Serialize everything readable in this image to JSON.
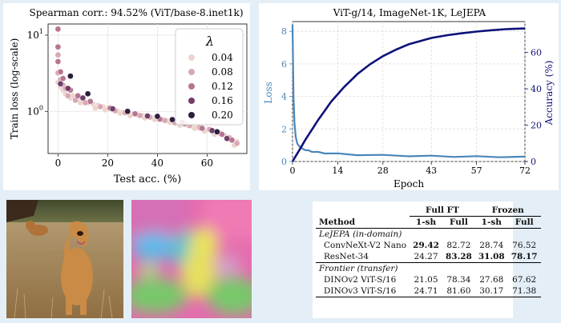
{
  "chart_data": [
    {
      "type": "scatter",
      "title": "Spearman corr.: 94.52% (ViT/base-8.inet1k)",
      "xlabel": "Test acc. (%)",
      "ylabel": "Train loss (log-scale)",
      "xlim": [
        -4,
        76
      ],
      "ylim": [
        0.28,
        14
      ],
      "y_scale": "log",
      "x_ticks": [
        0,
        20,
        40,
        60
      ],
      "y_ticks": [
        1,
        10
      ],
      "y_tick_labels": [
        "10^0",
        "10^1"
      ],
      "legend": {
        "title": "λ",
        "placement": "top-right"
      },
      "grid": true,
      "colors": {
        "0.04": "#ecd3cd",
        "0.08": "#d9a8b1",
        "0.12": "#b87592",
        "0.16": "#6f3f69",
        "0.20": "#2d1e3e"
      },
      "series": [
        {
          "name": "0.04",
          "points": [
            [
              0,
              2.4
            ],
            [
              1,
              2.1
            ],
            [
              2,
              1.9
            ],
            [
              3,
              1.7
            ],
            [
              5,
              1.5
            ],
            [
              6,
              1.6
            ],
            [
              8,
              1.45
            ],
            [
              10,
              1.35
            ],
            [
              12,
              1.3
            ],
            [
              14,
              1.25
            ],
            [
              16,
              1.2
            ],
            [
              18,
              1.15
            ],
            [
              20,
              1.1
            ],
            [
              22,
              1.05
            ],
            [
              24,
              1.0
            ],
            [
              26,
              0.97
            ],
            [
              28,
              0.95
            ],
            [
              30,
              0.92
            ],
            [
              32,
              0.9
            ],
            [
              34,
              0.88
            ],
            [
              36,
              0.85
            ],
            [
              38,
              0.82
            ],
            [
              40,
              0.8
            ],
            [
              42,
              0.78
            ],
            [
              44,
              0.75
            ],
            [
              46,
              0.73
            ],
            [
              48,
              0.7
            ],
            [
              50,
              0.68
            ],
            [
              52,
              0.66
            ],
            [
              54,
              0.64
            ],
            [
              56,
              0.62
            ],
            [
              58,
              0.6
            ],
            [
              60,
              0.57
            ],
            [
              62,
              0.55
            ],
            [
              64,
              0.52
            ],
            [
              66,
              0.5
            ],
            [
              68,
              0.46
            ],
            [
              70,
              0.43
            ],
            [
              72,
              0.4
            ],
            [
              15,
              1.1
            ],
            [
              25,
              0.95
            ],
            [
              35,
              0.82
            ],
            [
              45,
              0.72
            ],
            [
              55,
              0.6
            ],
            [
              63,
              0.5
            ],
            [
              9,
              1.3
            ],
            [
              19,
              1.05
            ],
            [
              29,
              0.88
            ],
            [
              39,
              0.78
            ],
            [
              49,
              0.66
            ],
            [
              59,
              0.55
            ],
            [
              67,
              0.48
            ],
            [
              71,
              0.36
            ]
          ]
        },
        {
          "name": "0.08",
          "points": [
            [
              0,
              3.2
            ],
            [
              1,
              2.6
            ],
            [
              2,
              2.2
            ],
            [
              4,
              1.6
            ],
            [
              7,
              1.4
            ],
            [
              11,
              1.3
            ],
            [
              17,
              1.15
            ],
            [
              23,
              1.02
            ],
            [
              27,
              0.96
            ],
            [
              33,
              0.88
            ],
            [
              37,
              0.84
            ],
            [
              43,
              0.76
            ],
            [
              47,
              0.71
            ],
            [
              53,
              0.65
            ],
            [
              57,
              0.61
            ],
            [
              61,
              0.58
            ],
            [
              65,
              0.52
            ],
            [
              69,
              0.45
            ],
            [
              72,
              0.38
            ],
            [
              0,
              5.5
            ],
            [
              3,
              2.0
            ]
          ]
        },
        {
          "name": "0.12",
          "points": [
            [
              0,
              12
            ],
            [
              0,
              7
            ],
            [
              0,
              4.5
            ],
            [
              1,
              3.3
            ],
            [
              2,
              2.7
            ],
            [
              5,
              1.9
            ],
            [
              8,
              1.6
            ],
            [
              13,
              1.35
            ],
            [
              21,
              1.1
            ],
            [
              31,
              0.93
            ],
            [
              41,
              0.79
            ],
            [
              51,
              0.69
            ],
            [
              58,
              0.6
            ],
            [
              66,
              0.5
            ],
            [
              70,
              0.42
            ]
          ]
        },
        {
          "name": "0.16",
          "points": [
            [
              1,
              2.3
            ],
            [
              4,
              2.0
            ],
            [
              10,
              1.5
            ],
            [
              22,
              1.08
            ],
            [
              36,
              0.87
            ],
            [
              50,
              0.72
            ],
            [
              62,
              0.56
            ],
            [
              68,
              0.44
            ]
          ]
        },
        {
          "name": "0.20",
          "points": [
            [
              5,
              2.9
            ],
            [
              12,
              1.7
            ],
            [
              28,
              1.0
            ],
            [
              46,
              0.78
            ],
            [
              64,
              0.54
            ],
            [
              40,
              0.86
            ]
          ]
        }
      ]
    },
    {
      "type": "line",
      "title": "ViT-g/14, ImageNet-1K, LeJEPA",
      "xlabel": "Epoch",
      "ylabel": "Loss",
      "y2label": "Accuracy (%)",
      "xlim": [
        0,
        72
      ],
      "ylim": [
        0,
        8.6
      ],
      "y2lim": [
        0,
        77
      ],
      "x_ticks": [
        0,
        14,
        28,
        43,
        57,
        72
      ],
      "y_ticks": [
        0,
        2,
        4,
        6,
        8
      ],
      "y2_ticks": [
        0,
        20,
        40,
        60
      ],
      "grid": true,
      "colors": {
        "loss": "#4a86b9",
        "accuracy": "#0c1277"
      },
      "series": [
        {
          "name": "Loss",
          "axis": "left",
          "x": [
            0,
            0.3,
            0.6,
            1,
            1.5,
            2,
            3,
            4,
            5,
            6,
            8,
            10,
            14,
            20,
            28,
            36,
            43,
            50,
            57,
            64,
            72
          ],
          "y": [
            8.4,
            4.0,
            2.4,
            1.5,
            1.1,
            0.95,
            0.8,
            0.72,
            0.66,
            0.62,
            0.56,
            0.52,
            0.47,
            0.42,
            0.38,
            0.35,
            0.33,
            0.31,
            0.3,
            0.29,
            0.27
          ]
        },
        {
          "name": "Accuracy",
          "axis": "right",
          "x": [
            0,
            1,
            2,
            4,
            6,
            8,
            10,
            12,
            14,
            16,
            18,
            20,
            24,
            28,
            32,
            36,
            40,
            43,
            48,
            52,
            57,
            62,
            66,
            72
          ],
          "y": [
            0,
            3,
            6,
            12,
            17.5,
            23,
            28,
            33,
            37,
            41,
            44.5,
            48,
            53.5,
            58,
            61.5,
            64.5,
            66.5,
            68,
            69.5,
            70.5,
            71.5,
            72.3,
            72.8,
            73.2
          ]
        }
      ]
    }
  ],
  "table": {
    "method_header": "Method",
    "group_full_ft": "Full FT",
    "group_frozen": "Frozen",
    "sub_1sh": "1-sh",
    "sub_full": "Full",
    "section_indomain": "LeJEPA (in-domain)",
    "section_transfer": "Frontier (transfer)",
    "rows_indomain": [
      {
        "method": "ConvNeXt-V2 Nano",
        "cells": [
          {
            "v": "29.42",
            "b": true
          },
          {
            "v": "82.72",
            "b": false
          },
          {
            "v": "28.74",
            "b": false
          },
          {
            "v": "76.52",
            "b": false
          }
        ]
      },
      {
        "method": "ResNet-34",
        "cells": [
          {
            "v": "24.27",
            "b": false
          },
          {
            "v": "83.28",
            "b": true
          },
          {
            "v": "31.08",
            "b": true
          },
          {
            "v": "78.17",
            "b": true
          }
        ]
      }
    ],
    "rows_transfer": [
      {
        "method": "DINOv2 ViT-S/16",
        "cells": [
          {
            "v": "21.05",
            "b": false
          },
          {
            "v": "78.34",
            "b": false
          },
          {
            "v": "27.68",
            "b": false
          },
          {
            "v": "67.62",
            "b": false
          }
        ]
      },
      {
        "method": "DINOv3 ViT-S/16",
        "cells": [
          {
            "v": "24.71",
            "b": false
          },
          {
            "v": "81.60",
            "b": false
          },
          {
            "v": "30.17",
            "b": false
          },
          {
            "v": "71.38",
            "b": false
          }
        ]
      }
    ]
  }
}
